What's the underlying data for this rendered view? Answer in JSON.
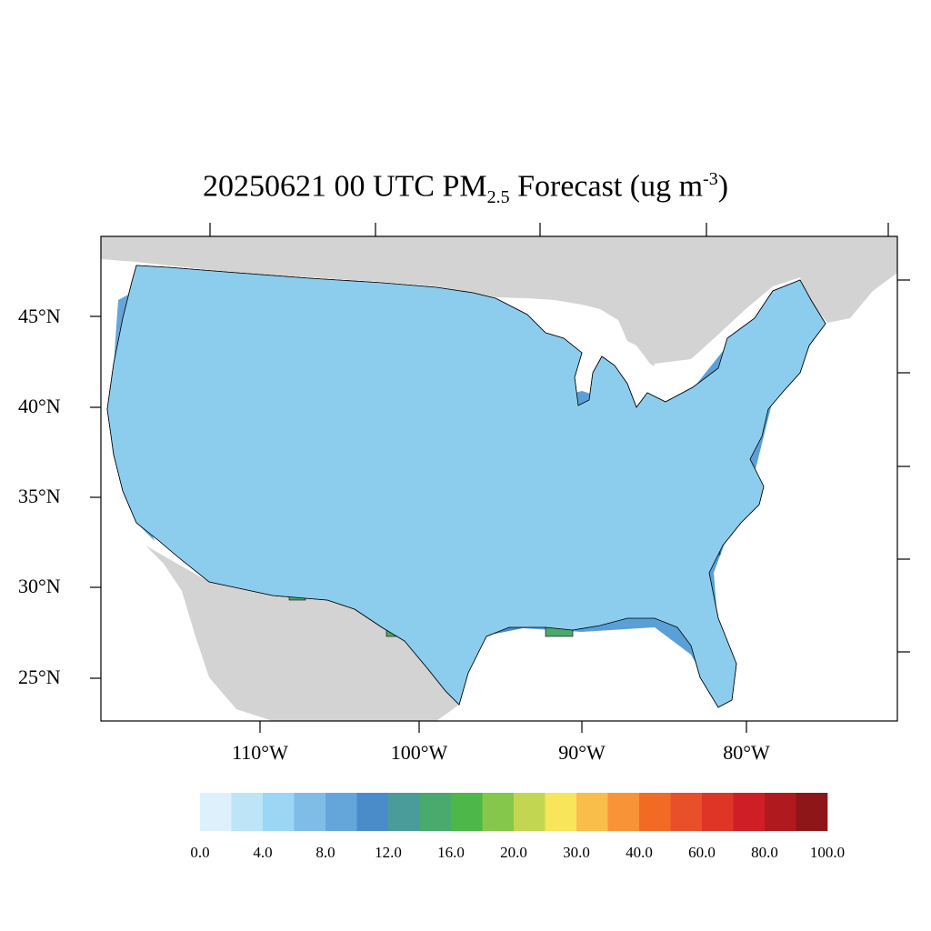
{
  "title": {
    "main": "20250621 00 UTC PM",
    "sub": "2.5",
    "mid": " Forecast (ug m",
    "sup": "-3",
    "end": ")"
  },
  "lat_labels": [
    "45°N",
    "40°N",
    "35°N",
    "30°N",
    "25°N"
  ],
  "lon_labels": [
    "110°W",
    "100°W",
    "90°W",
    "80°W"
  ],
  "colorbar": {
    "colors": [
      "#dcf1fb",
      "#bde4f7",
      "#9bd6f4",
      "#7fbce6",
      "#65a6da",
      "#4a8bc9",
      "#4a9c9b",
      "#4aa96c",
      "#4db749",
      "#85c74a",
      "#c3d651",
      "#f8e55a",
      "#f9bd49",
      "#f89437",
      "#f26b25",
      "#e8502a",
      "#de3527",
      "#cf1f26",
      "#b0191e",
      "#8e1518"
    ],
    "labels": [
      "0.0",
      "4.0",
      "8.0",
      "12.0",
      "16.0",
      "20.0",
      "30.0",
      "40.0",
      "60.0",
      "80.0",
      "100.0"
    ]
  },
  "map": {
    "land_outside_color": "#d3d3d3",
    "water_color": "#ffffff",
    "base_fill": "#8ccdee"
  }
}
